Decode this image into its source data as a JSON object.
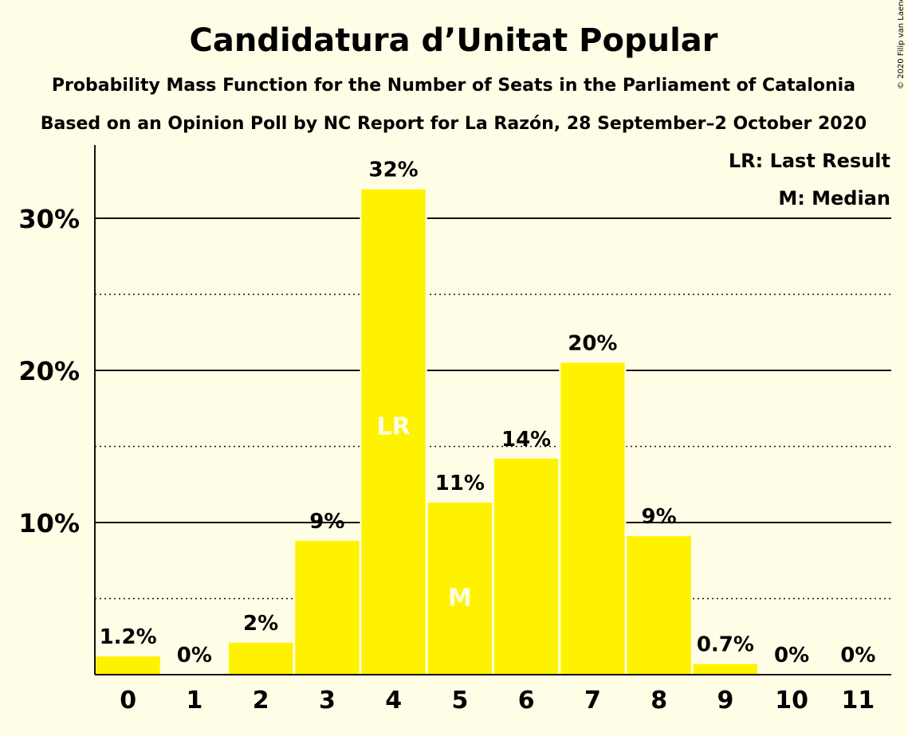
{
  "title": "Candidatura d’Unitat Popular",
  "subtitle1": "Probability Mass Function for the Number of Seats in the Parliament of Catalonia",
  "subtitle2": "Based on an Opinion Poll by NC Report for La Razón, 28 September–2 October 2020",
  "legend": {
    "last_result": "LR: Last Result",
    "median": "M: Median"
  },
  "copyright": "© 2020 Filip van Laenen",
  "colors": {
    "bar": "#FFF200",
    "background": "#FFFDE6",
    "text": "#1a0f0f"
  },
  "chart_data": {
    "type": "bar",
    "categories": [
      "0",
      "1",
      "2",
      "3",
      "4",
      "5",
      "6",
      "7",
      "8",
      "9",
      "10",
      "11"
    ],
    "values": [
      1.2,
      0.0,
      2.1,
      8.8,
      31.9,
      11.3,
      14.2,
      20.5,
      9.1,
      0.7,
      0.0,
      0.0
    ],
    "data_labels": [
      "1.2%",
      "0%",
      "2%",
      "9%",
      "32%",
      "11%",
      "14%",
      "20%",
      "9%",
      "0.7%",
      "0%",
      "0%"
    ],
    "in_bar_labels": {
      "4": "LR",
      "5": "M"
    },
    "y_ticks": [
      "10%",
      "20%",
      "30%"
    ],
    "y_tick_values": [
      10,
      20,
      30
    ],
    "minor_gridlines": [
      5,
      15,
      25
    ],
    "ylim": [
      0,
      34
    ],
    "xlabel": "",
    "ylabel": ""
  }
}
